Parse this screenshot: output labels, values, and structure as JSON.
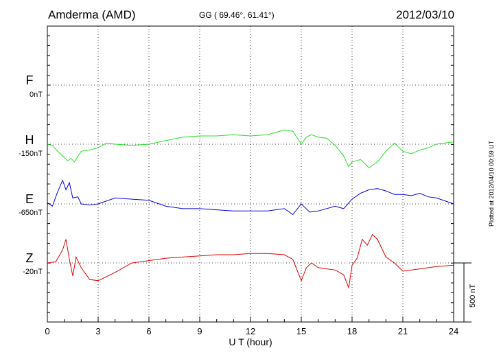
{
  "header": {
    "station": "Amderma (AMD)",
    "coords": "GG ( 69.46°,  61.41°)",
    "date": "2012/03/10"
  },
  "footer": "Plotted at 2012/04/10 00:59 UT",
  "scale_bar": {
    "label": "500 nT",
    "value": 500
  },
  "chart_data": {
    "type": "line",
    "xlabel": "U T (hour)",
    "xlim": [
      0,
      24
    ],
    "xticks": [
      "0",
      "3",
      "6",
      "9",
      "12",
      "15",
      "18",
      "21",
      "24"
    ],
    "grid": true,
    "channels": [
      {
        "name": "F",
        "baseline": "0nT",
        "color": "#ffaa00",
        "x": [],
        "values": []
      },
      {
        "name": "H",
        "baseline": "-150nT",
        "color": "#22dd22",
        "x": [
          0,
          0.3,
          0.6,
          0.9,
          1.2,
          1.4,
          1.6,
          2.0,
          2.5,
          3.0,
          3.5,
          4.0,
          5.0,
          6.0,
          7.0,
          8.0,
          9.0,
          10.0,
          11.0,
          12.0,
          13.0,
          14.0,
          14.5,
          15.0,
          15.3,
          15.6,
          16.0,
          16.5,
          17.0,
          17.5,
          17.8,
          18.0,
          18.5,
          19.0,
          19.5,
          20.0,
          20.5,
          21.0,
          21.5,
          22.0,
          22.5,
          23.0,
          23.5,
          24.0
        ],
        "values": [
          0,
          -10,
          -60,
          -100,
          -140,
          -120,
          -150,
          -60,
          -50,
          -30,
          10,
          0,
          -10,
          0,
          30,
          60,
          70,
          70,
          80,
          70,
          80,
          120,
          110,
          0,
          60,
          80,
          60,
          50,
          -10,
          -100,
          -190,
          -150,
          -130,
          -200,
          -150,
          -60,
          10,
          -60,
          -80,
          -50,
          -30,
          0,
          10,
          20
        ]
      },
      {
        "name": "E",
        "baseline": "-650nT",
        "color": "#0000dd",
        "x": [
          0,
          0.3,
          0.6,
          0.9,
          1.1,
          1.3,
          1.5,
          1.8,
          2.0,
          2.5,
          3.0,
          4.0,
          5.0,
          6.0,
          7.0,
          8.0,
          9.0,
          10.0,
          11.0,
          12.0,
          13.0,
          14.0,
          14.5,
          15.0,
          15.5,
          16.0,
          17.0,
          17.5,
          18.0,
          18.5,
          19.0,
          19.5,
          20.0,
          20.5,
          21.0,
          21.5,
          22.0,
          22.5,
          23.0,
          24.0
        ],
        "values": [
          10,
          -20,
          100,
          200,
          120,
          180,
          50,
          60,
          0,
          -10,
          0,
          50,
          40,
          30,
          -20,
          -40,
          -40,
          -50,
          -60,
          -60,
          -60,
          -40,
          -90,
          0,
          -70,
          -60,
          -20,
          -40,
          40,
          90,
          120,
          130,
          110,
          80,
          80,
          70,
          90,
          60,
          50,
          0
        ]
      },
      {
        "name": "Z",
        "baseline": "-20nT",
        "color": "#dd0000",
        "x": [
          0,
          0.5,
          0.9,
          1.1,
          1.3,
          1.5,
          1.7,
          2.0,
          2.5,
          3.0,
          4.0,
          5.0,
          6.0,
          7.0,
          8.0,
          9.0,
          10.0,
          11.0,
          12.0,
          13.0,
          14.0,
          14.5,
          15.0,
          15.3,
          15.6,
          16.0,
          17.0,
          17.5,
          17.8,
          18.0,
          18.3,
          18.6,
          18.9,
          19.2,
          19.5,
          20.0,
          20.5,
          21.0,
          22.0,
          23.0,
          24.0
        ],
        "values": [
          0,
          10,
          110,
          200,
          30,
          -110,
          50,
          -40,
          -140,
          -150,
          -80,
          0,
          20,
          40,
          50,
          60,
          70,
          70,
          80,
          80,
          70,
          30,
          -150,
          -40,
          0,
          -40,
          -60,
          -100,
          -210,
          -20,
          40,
          200,
          150,
          240,
          200,
          50,
          0,
          -70,
          -50,
          -30,
          -20
        ]
      }
    ]
  }
}
